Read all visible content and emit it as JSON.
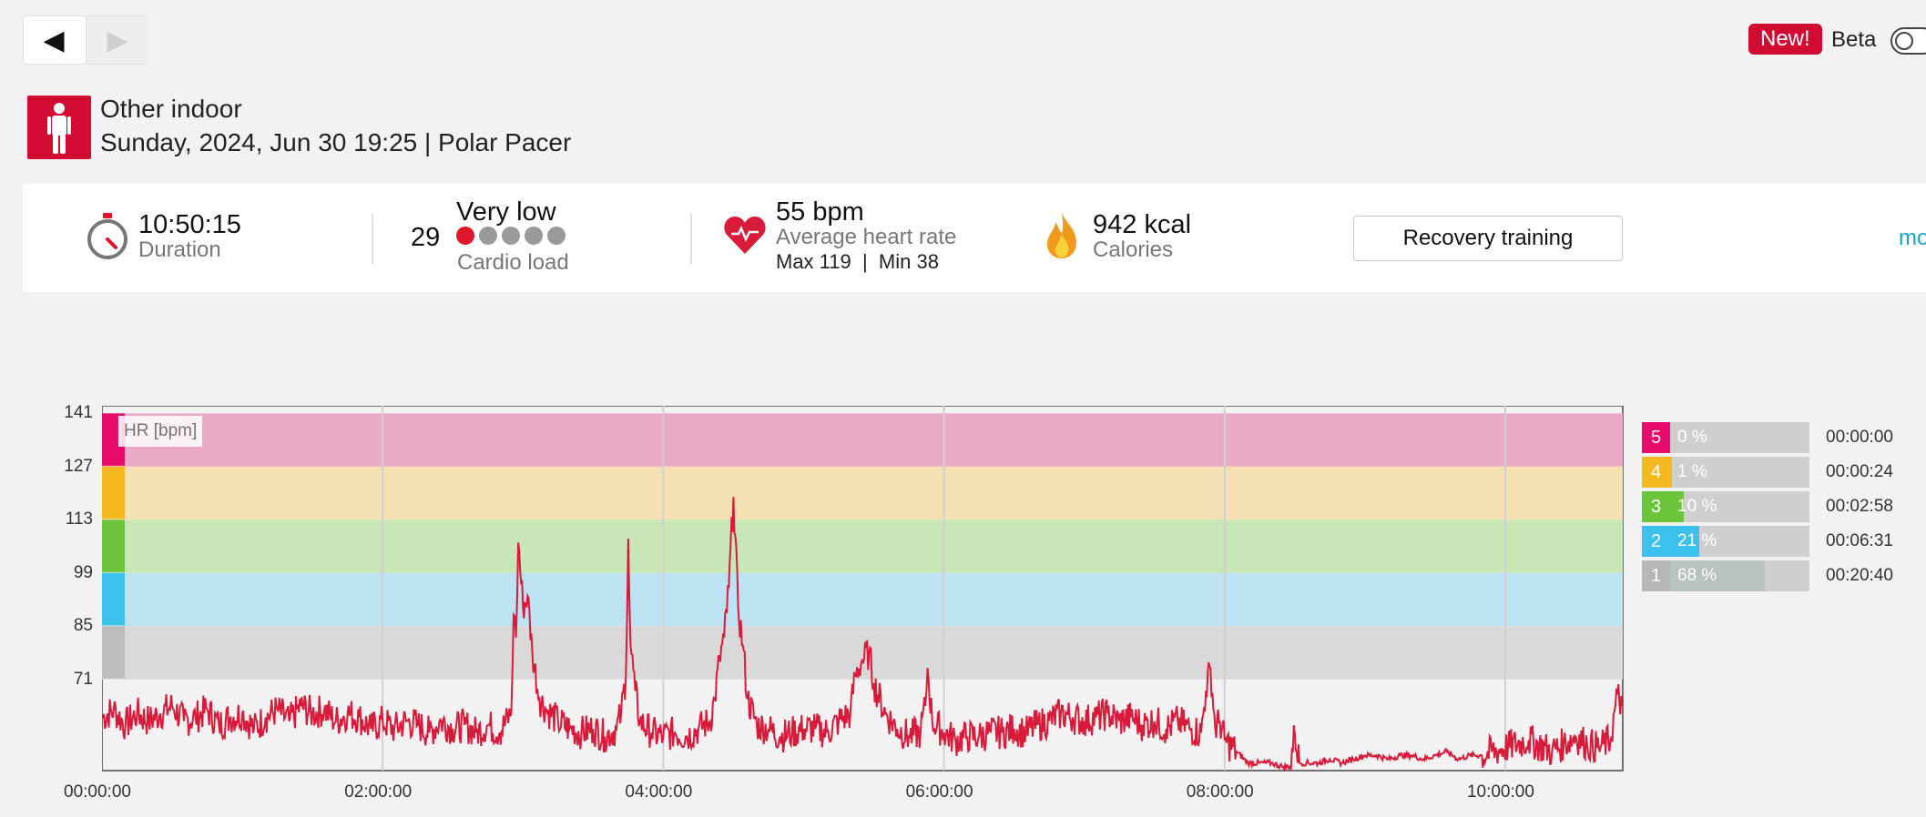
{
  "nav": {
    "prev": "◀",
    "next": "▶"
  },
  "header": {
    "new_badge": "New!",
    "beta_label": "Beta"
  },
  "session": {
    "sport": "Other indoor",
    "subtitle": "Sunday, 2024, Jun 30 19:25 | Polar Pacer"
  },
  "summary": {
    "duration_value": "10:50:15",
    "duration_label": "Duration",
    "cardio_value": "29",
    "cardio_level": "Very low",
    "cardio_label": "Cardio load",
    "cardio_dots_filled": 1,
    "cardio_dots_total": 5,
    "hr_value": "55 bpm",
    "hr_label": "Average heart rate",
    "hr_maxmin": "Max 119  |  Min 38",
    "calories_value": "942 kcal",
    "calories_label": "Calories",
    "benefit": "Recovery training",
    "more_link": "mo"
  },
  "chart_data": {
    "type": "line",
    "series_label": "HR [bpm]",
    "ylim": [
      47,
      143
    ],
    "yticks": [
      "141",
      "127",
      "113",
      "99",
      "85",
      "71"
    ],
    "xticks": [
      "00:00:00",
      "02:00:00",
      "04:00:00",
      "06:00:00",
      "08:00:00",
      "10:00:00"
    ],
    "x_range_minutes": [
      0,
      650.25
    ],
    "zone_bands": [
      {
        "zone": 5,
        "from": 127,
        "to": 141,
        "color": "#e70b6b"
      },
      {
        "zone": 4,
        "from": 113,
        "to": 127,
        "color": "#f5b81f"
      },
      {
        "zone": 3,
        "from": 99,
        "to": 113,
        "color": "#6bc43a"
      },
      {
        "zone": 2,
        "from": 85,
        "to": 99,
        "color": "#3cc0ec"
      },
      {
        "zone": 1,
        "from": 71,
        "to": 85,
        "color": "#bdbdbd"
      }
    ],
    "hr_points": [
      [
        0,
        61
      ],
      [
        5,
        63
      ],
      [
        10,
        59
      ],
      [
        15,
        62
      ],
      [
        20,
        60
      ],
      [
        25,
        62
      ],
      [
        30,
        64
      ],
      [
        35,
        60
      ],
      [
        40,
        61
      ],
      [
        45,
        63
      ],
      [
        50,
        59
      ],
      [
        55,
        61
      ],
      [
        60,
        62
      ],
      [
        65,
        58
      ],
      [
        70,
        61
      ],
      [
        75,
        63
      ],
      [
        80,
        60
      ],
      [
        85,
        64
      ],
      [
        90,
        62
      ],
      [
        95,
        63
      ],
      [
        100,
        60
      ],
      [
        105,
        62
      ],
      [
        110,
        61
      ],
      [
        115,
        58
      ],
      [
        120,
        60
      ],
      [
        125,
        58
      ],
      [
        130,
        60
      ],
      [
        135,
        59
      ],
      [
        140,
        57
      ],
      [
        145,
        60
      ],
      [
        150,
        58
      ],
      [
        155,
        59
      ],
      [
        160,
        57
      ],
      [
        165,
        59
      ],
      [
        170,
        57
      ],
      [
        175,
        62
      ],
      [
        176,
        88
      ],
      [
        177,
        82
      ],
      [
        178,
        107
      ],
      [
        180,
        90
      ],
      [
        182,
        93
      ],
      [
        184,
        78
      ],
      [
        187,
        66
      ],
      [
        190,
        63
      ],
      [
        195,
        60
      ],
      [
        200,
        58
      ],
      [
        205,
        57
      ],
      [
        210,
        58
      ],
      [
        215,
        56
      ],
      [
        220,
        58
      ],
      [
        222,
        62
      ],
      [
        224,
        72
      ],
      [
        225,
        108
      ],
      [
        226,
        80
      ],
      [
        228,
        68
      ],
      [
        230,
        60
      ],
      [
        235,
        57
      ],
      [
        240,
        56
      ],
      [
        245,
        57
      ],
      [
        250,
        56
      ],
      [
        255,
        58
      ],
      [
        260,
        60
      ],
      [
        262,
        66
      ],
      [
        264,
        76
      ],
      [
        266,
        82
      ],
      [
        268,
        95
      ],
      [
        270,
        119
      ],
      [
        272,
        90
      ],
      [
        274,
        80
      ],
      [
        276,
        66
      ],
      [
        280,
        59
      ],
      [
        285,
        58
      ],
      [
        290,
        56
      ],
      [
        295,
        57
      ],
      [
        300,
        58
      ],
      [
        305,
        58
      ],
      [
        310,
        57
      ],
      [
        315,
        60
      ],
      [
        320,
        62
      ],
      [
        322,
        72
      ],
      [
        325,
        76
      ],
      [
        328,
        78
      ],
      [
        330,
        70
      ],
      [
        335,
        62
      ],
      [
        340,
        58
      ],
      [
        345,
        56
      ],
      [
        350,
        57
      ],
      [
        352,
        64
      ],
      [
        353,
        74
      ],
      [
        355,
        60
      ],
      [
        360,
        57
      ],
      [
        365,
        55
      ],
      [
        370,
        56
      ],
      [
        375,
        56
      ],
      [
        380,
        57
      ],
      [
        385,
        57
      ],
      [
        390,
        58
      ],
      [
        395,
        57
      ],
      [
        400,
        59
      ],
      [
        405,
        60
      ],
      [
        410,
        62
      ],
      [
        415,
        61
      ],
      [
        420,
        60
      ],
      [
        425,
        61
      ],
      [
        430,
        62
      ],
      [
        435,
        60
      ],
      [
        440,
        61
      ],
      [
        445,
        59
      ],
      [
        450,
        60
      ],
      [
        455,
        58
      ],
      [
        460,
        60
      ],
      [
        465,
        58
      ],
      [
        470,
        57
      ],
      [
        472,
        68
      ],
      [
        474,
        74
      ],
      [
        476,
        58
      ],
      [
        478,
        60
      ],
      [
        480,
        55
      ],
      [
        485,
        52
      ],
      [
        490,
        49
      ],
      [
        495,
        49
      ],
      [
        500,
        49
      ],
      [
        505,
        48
      ],
      [
        508,
        48
      ],
      [
        510,
        57
      ],
      [
        512,
        49
      ],
      [
        515,
        49
      ],
      [
        520,
        49
      ],
      [
        525,
        50
      ],
      [
        530,
        49
      ],
      [
        535,
        50
      ],
      [
        540,
        51
      ],
      [
        545,
        51
      ],
      [
        550,
        50
      ],
      [
        555,
        51
      ],
      [
        560,
        51
      ],
      [
        565,
        50
      ],
      [
        570,
        51
      ],
      [
        575,
        52
      ],
      [
        580,
        50
      ],
      [
        585,
        51
      ],
      [
        590,
        51
      ],
      [
        610,
        55
      ],
      [
        620,
        52
      ],
      [
        625,
        54
      ],
      [
        630,
        56
      ],
      [
        635,
        54
      ],
      [
        640,
        53
      ],
      [
        645,
        55
      ],
      [
        648,
        67
      ],
      [
        650,
        64
      ]
    ]
  },
  "zones": [
    {
      "num": "5",
      "pct": "0 %",
      "time": "00:00:00",
      "fill": 0,
      "color": "#e70b6b"
    },
    {
      "num": "4",
      "pct": "1 %",
      "time": "00:00:24",
      "fill": 0.01,
      "color": "#f5b81f"
    },
    {
      "num": "3",
      "pct": "10 %",
      "time": "00:02:58",
      "fill": 0.1,
      "color": "#6bc43a"
    },
    {
      "num": "2",
      "pct": "21 %",
      "time": "00:06:31",
      "fill": 0.21,
      "color": "#3cc0ec"
    },
    {
      "num": "1",
      "pct": "68 %",
      "time": "00:20:40",
      "fill": 0.68,
      "color": "#b6b6b6"
    }
  ]
}
